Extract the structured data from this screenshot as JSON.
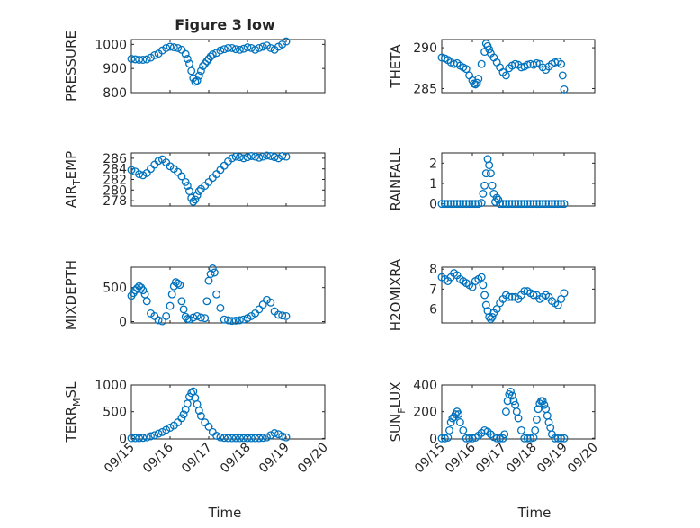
{
  "figure": {
    "title": "Figure 3 low",
    "xlabel": "Time"
  },
  "colors": {
    "marker": "#0072BD",
    "axes": "#262626"
  },
  "chart_data": [
    {
      "type": "scatter",
      "ylabel": "PRESSURE",
      "title": "Figure 3 low",
      "xlim": [
        0,
        5
      ],
      "ylim": [
        800,
        1020
      ],
      "yticks": [
        "800",
        "900",
        "1000"
      ],
      "ytick_values": [
        800,
        900,
        1000
      ],
      "xticks": [
        "09/15",
        "09/16",
        "09/17",
        "09/18",
        "09/19",
        "09/20"
      ],
      "grid": true,
      "x": [
        0.0,
        0.1,
        0.2,
        0.3,
        0.4,
        0.5,
        0.6,
        0.7,
        0.8,
        0.9,
        1.0,
        1.1,
        1.2,
        1.3,
        1.4,
        1.45,
        1.5,
        1.55,
        1.6,
        1.65,
        1.7,
        1.75,
        1.8,
        1.85,
        1.9,
        1.95,
        2.0,
        2.05,
        2.1,
        2.2,
        2.3,
        2.4,
        2.5,
        2.6,
        2.7,
        2.8,
        2.9,
        3.0,
        3.1,
        3.2,
        3.3,
        3.4,
        3.5,
        3.6,
        3.7,
        3.8,
        3.9,
        4.0
      ],
      "y": [
        940,
        938,
        936,
        936,
        938,
        945,
        955,
        962,
        975,
        985,
        990,
        988,
        985,
        978,
        960,
        940,
        920,
        890,
        860,
        845,
        850,
        870,
        890,
        910,
        920,
        930,
        940,
        950,
        958,
        965,
        975,
        980,
        985,
        985,
        980,
        978,
        982,
        988,
        985,
        978,
        985,
        990,
        995,
        985,
        978,
        990,
        1000,
        1012
      ]
    },
    {
      "type": "scatter",
      "ylabel": "THETA",
      "xlim": [
        0,
        5
      ],
      "ylim": [
        284.5,
        291
      ],
      "yticks": [
        "285",
        "290"
      ],
      "ytick_values": [
        285,
        290
      ],
      "xticks": [
        "09/15",
        "09/16",
        "09/17",
        "09/18",
        "09/19",
        "09/20"
      ],
      "grid": true,
      "x": [
        0.0,
        0.1,
        0.2,
        0.3,
        0.4,
        0.5,
        0.6,
        0.7,
        0.8,
        0.9,
        1.0,
        1.05,
        1.1,
        1.15,
        1.2,
        1.3,
        1.4,
        1.45,
        1.5,
        1.55,
        1.6,
        1.7,
        1.8,
        1.9,
        2.0,
        2.1,
        2.2,
        2.3,
        2.4,
        2.5,
        2.6,
        2.7,
        2.8,
        2.9,
        3.0,
        3.1,
        3.2,
        3.3,
        3.4,
        3.5,
        3.6,
        3.7,
        3.8,
        3.9,
        3.95,
        4.0
      ],
      "y": [
        288.8,
        288.7,
        288.5,
        288.2,
        288.0,
        288.1,
        287.8,
        287.6,
        287.4,
        286.6,
        286.0,
        285.6,
        285.5,
        285.7,
        286.2,
        288.0,
        289.5,
        290.5,
        290.2,
        289.8,
        289.3,
        288.8,
        288.2,
        287.6,
        287.0,
        286.6,
        287.5,
        287.8,
        288.0,
        287.9,
        287.6,
        287.7,
        287.9,
        288.0,
        287.9,
        288.1,
        288.0,
        287.6,
        287.3,
        287.7,
        288.0,
        288.2,
        288.3,
        288.0,
        286.6,
        284.9
      ]
    },
    {
      "type": "scatter",
      "ylabel": "AIR_TEMP",
      "ylabel_parts": [
        "AIR",
        "T",
        "EMP"
      ],
      "xlim": [
        0,
        5
      ],
      "ylim": [
        277,
        287
      ],
      "yticks": [
        "278",
        "280",
        "282",
        "284",
        "286"
      ],
      "ytick_values": [
        278,
        280,
        282,
        284,
        286
      ],
      "xticks": [
        "09/15",
        "09/16",
        "09/17",
        "09/18",
        "09/19",
        "09/20"
      ],
      "grid": true,
      "x": [
        0.0,
        0.1,
        0.2,
        0.3,
        0.4,
        0.5,
        0.6,
        0.7,
        0.8,
        0.9,
        1.0,
        1.1,
        1.2,
        1.3,
        1.4,
        1.45,
        1.5,
        1.55,
        1.6,
        1.65,
        1.7,
        1.75,
        1.8,
        1.9,
        2.0,
        2.1,
        2.2,
        2.3,
        2.4,
        2.5,
        2.6,
        2.7,
        2.8,
        2.9,
        3.0,
        3.1,
        3.2,
        3.3,
        3.4,
        3.5,
        3.6,
        3.7,
        3.8,
        3.9,
        4.0
      ],
      "y": [
        283.8,
        283.5,
        283.0,
        282.8,
        283.2,
        284.0,
        284.8,
        285.5,
        285.8,
        285.2,
        284.5,
        284.0,
        283.4,
        282.6,
        281.5,
        280.8,
        279.8,
        278.5,
        277.8,
        278.2,
        279.0,
        279.8,
        280.2,
        280.8,
        281.5,
        282.3,
        283.0,
        283.8,
        284.6,
        285.4,
        286.0,
        286.3,
        286.2,
        286.0,
        286.2,
        286.4,
        286.3,
        286.1,
        286.3,
        286.5,
        286.4,
        286.2,
        286.0,
        286.4,
        286.3
      ]
    },
    {
      "type": "scatter",
      "ylabel": "RAINFALL",
      "xlim": [
        0,
        5
      ],
      "ylim": [
        -0.1,
        2.5
      ],
      "yticks": [
        "0",
        "1",
        "2"
      ],
      "ytick_values": [
        0,
        1,
        2
      ],
      "xticks": [
        "09/15",
        "09/16",
        "09/17",
        "09/18",
        "09/19",
        "09/20"
      ],
      "grid": true,
      "x": [
        0.0,
        0.1,
        0.2,
        0.3,
        0.4,
        0.5,
        0.6,
        0.7,
        0.8,
        0.9,
        1.0,
        1.1,
        1.2,
        1.3,
        1.35,
        1.4,
        1.45,
        1.5,
        1.55,
        1.6,
        1.65,
        1.7,
        1.75,
        1.8,
        1.85,
        1.9,
        2.0,
        2.1,
        2.2,
        2.3,
        2.4,
        2.5,
        2.6,
        2.7,
        2.8,
        2.9,
        3.0,
        3.1,
        3.2,
        3.3,
        3.4,
        3.5,
        3.6,
        3.7,
        3.8,
        3.9,
        4.0
      ],
      "y": [
        0,
        0,
        0,
        0,
        0,
        0,
        0,
        0,
        0,
        0,
        0,
        0,
        0,
        0.05,
        0.5,
        0.9,
        1.5,
        2.2,
        1.9,
        1.5,
        0.9,
        0.5,
        0.1,
        0.3,
        0.2,
        0,
        0,
        0,
        0,
        0,
        0,
        0,
        0,
        0,
        0,
        0,
        0,
        0,
        0,
        0,
        0,
        0,
        0,
        0,
        0,
        0,
        0
      ]
    },
    {
      "type": "scatter",
      "ylabel": "MIXDEPTH",
      "xlim": [
        0,
        5
      ],
      "ylim": [
        -20,
        800
      ],
      "yticks": [
        "0",
        "500"
      ],
      "ytick_values": [
        0,
        500
      ],
      "xticks": [
        "09/15",
        "09/16",
        "09/17",
        "09/18",
        "09/19",
        "09/20"
      ],
      "grid": true,
      "x": [
        0.0,
        0.05,
        0.1,
        0.15,
        0.2,
        0.25,
        0.3,
        0.35,
        0.4,
        0.5,
        0.6,
        0.7,
        0.8,
        0.9,
        1.0,
        1.05,
        1.1,
        1.15,
        1.2,
        1.25,
        1.3,
        1.35,
        1.4,
        1.45,
        1.5,
        1.6,
        1.7,
        1.8,
        1.9,
        1.95,
        2.0,
        2.05,
        2.1,
        2.15,
        2.2,
        2.3,
        2.4,
        2.5,
        2.6,
        2.7,
        2.8,
        2.9,
        3.0,
        3.1,
        3.2,
        3.3,
        3.4,
        3.5,
        3.6,
        3.7,
        3.8,
        3.9,
        4.0
      ],
      "y": [
        380,
        420,
        460,
        490,
        520,
        500,
        460,
        400,
        300,
        120,
        80,
        20,
        5,
        80,
        230,
        400,
        520,
        580,
        560,
        540,
        300,
        180,
        70,
        40,
        30,
        60,
        80,
        60,
        50,
        300,
        600,
        700,
        780,
        720,
        400,
        200,
        30,
        20,
        10,
        15,
        20,
        30,
        50,
        80,
        120,
        180,
        250,
        320,
        280,
        150,
        100,
        90,
        80
      ]
    },
    {
      "type": "scatter",
      "ylabel": "H2OMIXRA",
      "xlim": [
        0,
        5
      ],
      "ylim": [
        5.3,
        8.1
      ],
      "yticks": [
        "6",
        "7",
        "8"
      ],
      "ytick_values": [
        6,
        7,
        8
      ],
      "xticks": [
        "09/15",
        "09/16",
        "09/17",
        "09/18",
        "09/19",
        "09/20"
      ],
      "grid": true,
      "x": [
        0.0,
        0.1,
        0.2,
        0.3,
        0.4,
        0.5,
        0.6,
        0.7,
        0.8,
        0.9,
        1.0,
        1.1,
        1.2,
        1.3,
        1.35,
        1.4,
        1.45,
        1.5,
        1.55,
        1.6,
        1.65,
        1.7,
        1.8,
        1.9,
        2.0,
        2.1,
        2.2,
        2.3,
        2.4,
        2.5,
        2.6,
        2.7,
        2.8,
        2.9,
        3.0,
        3.1,
        3.2,
        3.3,
        3.4,
        3.5,
        3.6,
        3.7,
        3.8,
        3.9,
        4.0
      ],
      "y": [
        7.6,
        7.5,
        7.4,
        7.6,
        7.8,
        7.7,
        7.5,
        7.4,
        7.3,
        7.2,
        7.1,
        7.4,
        7.5,
        7.6,
        7.2,
        6.7,
        6.2,
        5.9,
        5.6,
        5.5,
        5.6,
        5.8,
        6.0,
        6.3,
        6.5,
        6.7,
        6.6,
        6.6,
        6.6,
        6.5,
        6.7,
        6.9,
        6.9,
        6.8,
        6.7,
        6.7,
        6.5,
        6.6,
        6.7,
        6.6,
        6.4,
        6.3,
        6.2,
        6.5,
        6.8
      ]
    },
    {
      "type": "scatter",
      "ylabel": "TERR_MSL",
      "ylabel_parts": [
        "TERR",
        "M",
        "SL"
      ],
      "xlim": [
        0,
        5
      ],
      "ylim": [
        -10,
        1000
      ],
      "yticks": [
        "0",
        "500",
        "1000"
      ],
      "ytick_values": [
        0,
        500,
        1000
      ],
      "xticks": [
        "09/15",
        "09/16",
        "09/17",
        "09/18",
        "09/19",
        "09/20"
      ],
      "grid": true,
      "x": [
        0.0,
        0.1,
        0.2,
        0.3,
        0.4,
        0.5,
        0.6,
        0.7,
        0.8,
        0.9,
        1.0,
        1.1,
        1.2,
        1.3,
        1.35,
        1.4,
        1.45,
        1.5,
        1.55,
        1.6,
        1.65,
        1.7,
        1.75,
        1.8,
        1.9,
        2.0,
        2.1,
        2.2,
        2.3,
        2.4,
        2.5,
        2.6,
        2.7,
        2.8,
        2.9,
        3.0,
        3.1,
        3.2,
        3.3,
        3.4,
        3.5,
        3.6,
        3.7,
        3.8,
        3.9,
        4.0
      ],
      "y": [
        5,
        5,
        5,
        10,
        20,
        40,
        60,
        90,
        120,
        160,
        200,
        240,
        300,
        380,
        450,
        540,
        650,
        780,
        850,
        880,
        760,
        640,
        520,
        420,
        300,
        220,
        120,
        50,
        20,
        10,
        5,
        5,
        5,
        5,
        5,
        5,
        5,
        5,
        5,
        10,
        20,
        60,
        100,
        80,
        40,
        20
      ]
    },
    {
      "type": "scatter",
      "ylabel": "SUN_FLUX",
      "ylabel_parts": [
        "SUN",
        "F",
        "LUX"
      ],
      "xlim": [
        0,
        5
      ],
      "ylim": [
        -5,
        400
      ],
      "yticks": [
        "0",
        "200",
        "400"
      ],
      "ytick_values": [
        0,
        200,
        400
      ],
      "xticks": [
        "09/15",
        "09/16",
        "09/17",
        "09/18",
        "09/19",
        "09/20"
      ],
      "grid": true,
      "x": [
        0.0,
        0.1,
        0.2,
        0.25,
        0.3,
        0.35,
        0.4,
        0.45,
        0.5,
        0.55,
        0.6,
        0.7,
        0.8,
        0.9,
        1.0,
        1.1,
        1.2,
        1.3,
        1.4,
        1.5,
        1.6,
        1.7,
        1.8,
        1.9,
        2.0,
        2.05,
        2.1,
        2.15,
        2.2,
        2.25,
        2.3,
        2.35,
        2.4,
        2.45,
        2.5,
        2.6,
        2.7,
        2.8,
        2.9,
        3.0,
        3.05,
        3.1,
        3.15,
        3.2,
        3.25,
        3.3,
        3.35,
        3.4,
        3.45,
        3.5,
        3.55,
        3.6,
        3.7,
        3.8,
        3.9,
        4.0
      ],
      "y": [
        0,
        0,
        5,
        60,
        120,
        150,
        160,
        180,
        200,
        180,
        120,
        60,
        0,
        0,
        0,
        5,
        20,
        40,
        60,
        50,
        30,
        10,
        0,
        0,
        0,
        30,
        200,
        280,
        330,
        350,
        320,
        280,
        250,
        200,
        150,
        60,
        0,
        0,
        0,
        5,
        60,
        140,
        220,
        260,
        280,
        280,
        250,
        220,
        170,
        120,
        80,
        30,
        0,
        0,
        0,
        0
      ]
    }
  ]
}
